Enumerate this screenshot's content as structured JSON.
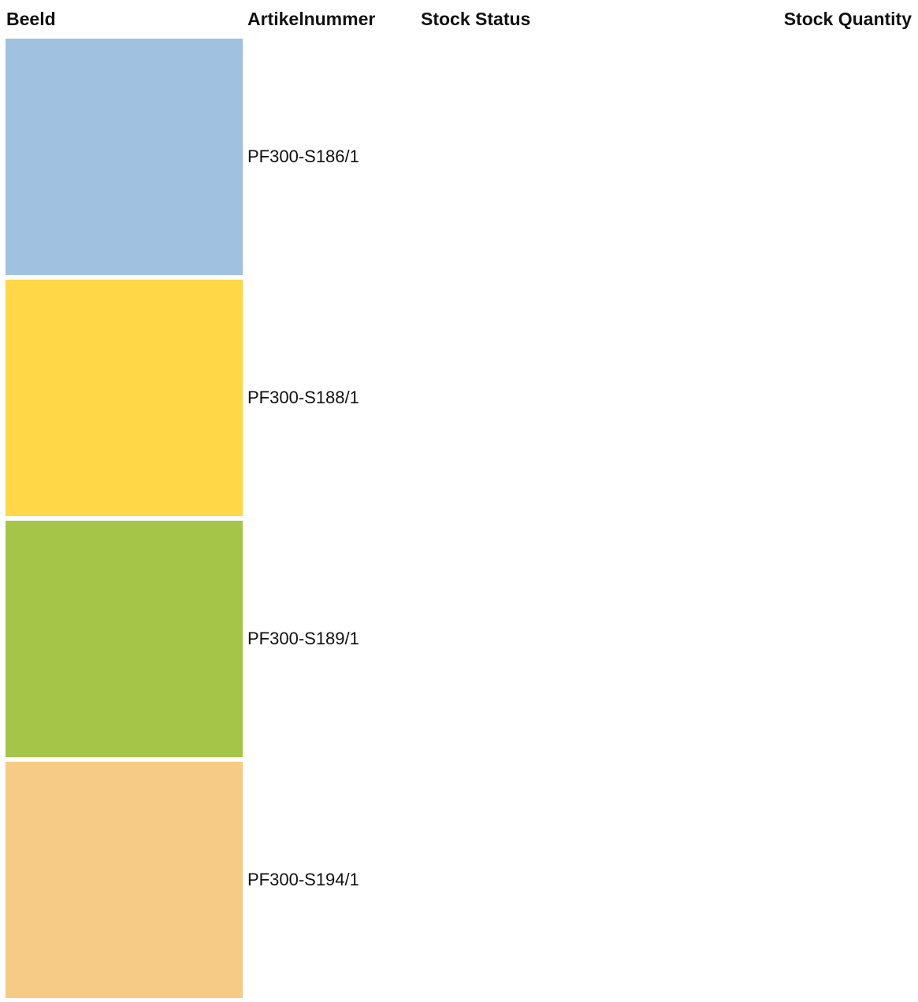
{
  "table": {
    "headers": {
      "image": "Beeld",
      "sku": "Artikelnummer",
      "stock_status": "Stock Status",
      "stock_quantity": "Stock Quantity"
    },
    "rows": [
      {
        "sku": "PF300-S186/1",
        "swatch_color": "#a1c1e0",
        "stock_status": "",
        "stock_quantity": ""
      },
      {
        "sku": "PF300-S188/1",
        "swatch_color": "#ffd747",
        "stock_status": "",
        "stock_quantity": ""
      },
      {
        "sku": "PF300-S189/1",
        "swatch_color": "#a4c548",
        "stock_status": "",
        "stock_quantity": ""
      },
      {
        "sku": "PF300-S194/1",
        "swatch_color": "#f5cb85",
        "stock_status": "",
        "stock_quantity": ""
      }
    ]
  }
}
